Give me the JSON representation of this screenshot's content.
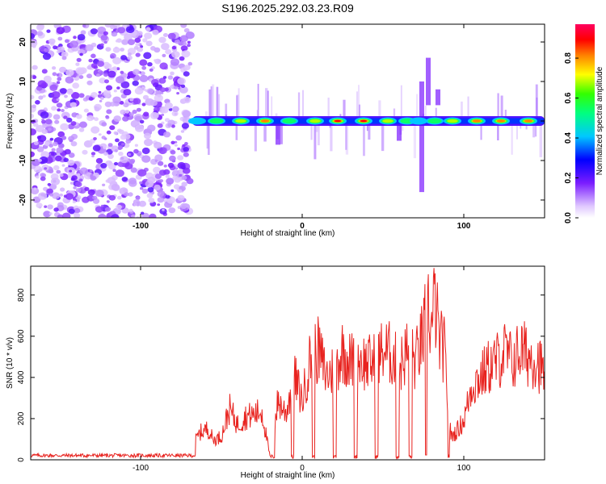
{
  "title": "S196.2025.292.03.23.R09",
  "chart_data": [
    {
      "type": "heatmap",
      "title": "S196.2025.292.03.23.R09",
      "xlabel": "Height of straight line (km)",
      "ylabel": "Frequency (Hz)",
      "xlim": [
        -168,
        150
      ],
      "ylim": [
        -24.5,
        24.5
      ],
      "xticks": [
        -100,
        0,
        100
      ],
      "yticks": [
        -20,
        -10,
        0,
        10,
        20
      ],
      "colorbar": {
        "label": "Normalized spectral amplitude",
        "range": [
          0,
          0.97
        ],
        "ticks": [
          "0.0",
          "0.2",
          "0.4",
          "0.6",
          "0.8"
        ],
        "tick_values": [
          0.0,
          0.2,
          0.4,
          0.6,
          0.8
        ]
      },
      "noise_region_km": [
        -168,
        -69
      ],
      "signal_band": {
        "frequency_hz": 0,
        "peaks": [
          {
            "x_km": -65,
            "amplitude": 0.5
          },
          {
            "x_km": -53,
            "amplitude": 0.55
          },
          {
            "x_km": -38,
            "amplitude": 0.7
          },
          {
            "x_km": -23,
            "amplitude": 0.85
          },
          {
            "x_km": -8,
            "amplitude": 0.55
          },
          {
            "x_km": 8,
            "amplitude": 0.8
          },
          {
            "x_km": 22,
            "amplitude": 0.92
          },
          {
            "x_km": 38,
            "amplitude": 0.92
          },
          {
            "x_km": 53,
            "amplitude": 0.75
          },
          {
            "x_km": 65,
            "amplitude": 0.65
          },
          {
            "x_km": 72,
            "amplitude": 0.5
          },
          {
            "x_km": 82,
            "amplitude": 0.55
          },
          {
            "x_km": 93,
            "amplitude": 0.7
          },
          {
            "x_km": 108,
            "amplitude": 0.9
          },
          {
            "x_km": 123,
            "amplitude": 0.88
          },
          {
            "x_km": 140,
            "amplitude": 0.9
          }
        ]
      }
    },
    {
      "type": "line",
      "xlabel": "Height of straight line (km)",
      "ylabel": "SNR (10 * v/v)",
      "xlim": [
        -168,
        150
      ],
      "ylim": [
        0,
        940
      ],
      "xticks": [
        -100,
        0,
        100
      ],
      "yticks": [
        0,
        200,
        400,
        600,
        800
      ],
      "color": "#e8231f",
      "series": [
        {
          "name": "SNR",
          "x": [
            -168,
            -150,
            -130,
            -110,
            -90,
            -72,
            -63,
            -58,
            -55,
            -50,
            -45,
            -40,
            -35,
            -30,
            -25,
            -20,
            -15,
            -10,
            -5,
            0,
            5,
            10,
            15,
            20,
            25,
            30,
            35,
            40,
            45,
            50,
            55,
            60,
            65,
            70,
            75,
            78,
            80,
            82,
            85,
            88,
            90,
            92,
            95,
            100,
            105,
            110,
            115,
            120,
            125,
            130,
            135,
            140,
            145,
            149
          ],
          "y": [
            20,
            22,
            20,
            22,
            20,
            22,
            140,
            160,
            100,
            120,
            260,
            180,
            220,
            230,
            250,
            20,
            300,
            240,
            430,
            300,
            520,
            560,
            430,
            460,
            560,
            500,
            520,
            490,
            500,
            560,
            540,
            470,
            560,
            500,
            640,
            800,
            650,
            820,
            600,
            560,
            300,
            120,
            140,
            200,
            380,
            420,
            470,
            500,
            550,
            500,
            560,
            530,
            520,
            450
          ]
        }
      ]
    }
  ]
}
